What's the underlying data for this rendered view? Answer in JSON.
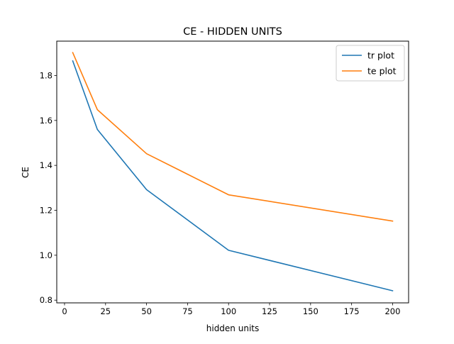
{
  "chart_data": {
    "type": "line",
    "title": "CE - HIDDEN UNITS",
    "xlabel": "hidden units",
    "ylabel": "CE",
    "xlim": [
      -4.75,
      209.75
    ],
    "ylim": [
      0.788,
      1.953
    ],
    "xticks": [
      0,
      25,
      50,
      75,
      100,
      125,
      150,
      175,
      200
    ],
    "yticks": [
      0.8,
      1.0,
      1.2,
      1.4,
      1.6,
      1.8
    ],
    "xtick_labels": [
      "0",
      "25",
      "50",
      "75",
      "100",
      "125",
      "150",
      "175",
      "200"
    ],
    "ytick_labels": [
      "0.8",
      "1.0",
      "1.2",
      "1.4",
      "1.6",
      "1.8"
    ],
    "grid": false,
    "legend_position": "top-right",
    "series": [
      {
        "name": "tr plot",
        "color": "#1f77b4",
        "x": [
          5,
          20,
          50,
          100,
          200
        ],
        "y": [
          1.865,
          1.56,
          1.292,
          1.022,
          0.842
        ]
      },
      {
        "name": "te plot",
        "color": "#ff7f0e",
        "x": [
          5,
          20,
          50,
          100,
          200
        ],
        "y": [
          1.902,
          1.648,
          1.452,
          1.269,
          1.152
        ]
      }
    ]
  }
}
